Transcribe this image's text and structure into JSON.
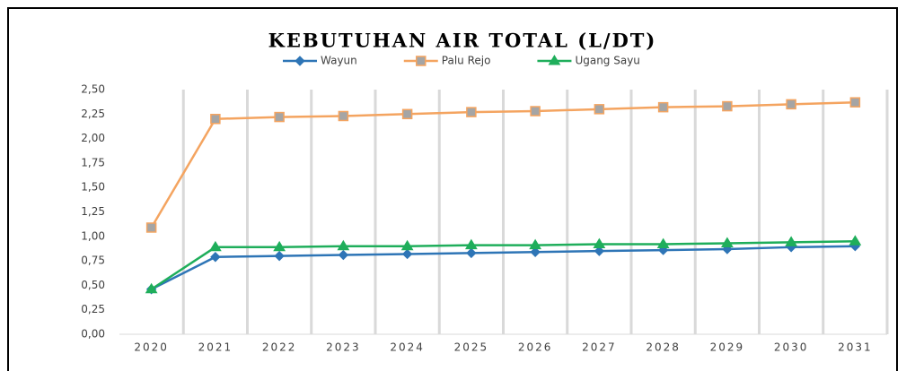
{
  "chart_data": {
    "type": "line",
    "title": "KEBUTUHAN AIR TOTAL (L/DT)",
    "categories": [
      "2020",
      "2021",
      "2022",
      "2023",
      "2024",
      "2025",
      "2026",
      "2027",
      "2028",
      "2029",
      "2030",
      "2031"
    ],
    "series": [
      {
        "name": "Wayun",
        "color": "#2e75b6",
        "marker": "diamond",
        "marker_color": "#2e75b6",
        "values": [
          0.46,
          0.79,
          0.8,
          0.81,
          0.82,
          0.83,
          0.84,
          0.85,
          0.86,
          0.87,
          0.89,
          0.9
        ]
      },
      {
        "name": "Palu Rejo",
        "color": "#f4a460",
        "marker": "square",
        "marker_color": "#a5a5a5",
        "values": [
          1.09,
          2.2,
          2.22,
          2.23,
          2.25,
          2.27,
          2.28,
          2.3,
          2.32,
          2.33,
          2.35,
          2.37
        ]
      },
      {
        "name": "Ugang Sayu",
        "color": "#1fae5b",
        "marker": "triangle",
        "marker_color": "#1fae5b",
        "values": [
          0.46,
          0.89,
          0.89,
          0.9,
          0.9,
          0.91,
          0.91,
          0.92,
          0.92,
          0.93,
          0.94,
          0.95
        ]
      }
    ],
    "ylim": [
      0,
      2.5
    ],
    "yticks": [
      {
        "value": 0,
        "label": "0,00"
      },
      {
        "value": 0.25,
        "label": "0,25"
      },
      {
        "value": 0.5,
        "label": "0,50"
      },
      {
        "value": 0.75,
        "label": "0,75"
      },
      {
        "value": 1,
        "label": "1,00"
      },
      {
        "value": 1.25,
        "label": "1,25"
      },
      {
        "value": 1.5,
        "label": "1,50"
      },
      {
        "value": 1.75,
        "label": "1,75"
      },
      {
        "value": 2,
        "label": "2,00"
      },
      {
        "value": 2.25,
        "label": "2,25"
      },
      {
        "value": 2.5,
        "label": "2,50"
      }
    ],
    "grid": "x",
    "legend": "top"
  }
}
